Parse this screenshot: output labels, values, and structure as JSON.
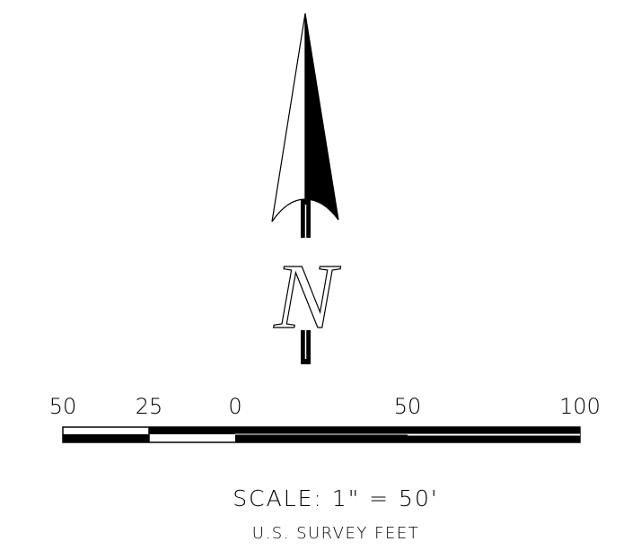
{
  "north_arrow": {
    "label": "N"
  },
  "scale_bar": {
    "ticks": [
      "50",
      "25",
      "0",
      "50",
      "100"
    ]
  },
  "scale_text": "SCALE: 1\" = 50'",
  "units": "U.S. SURVEY FEET"
}
